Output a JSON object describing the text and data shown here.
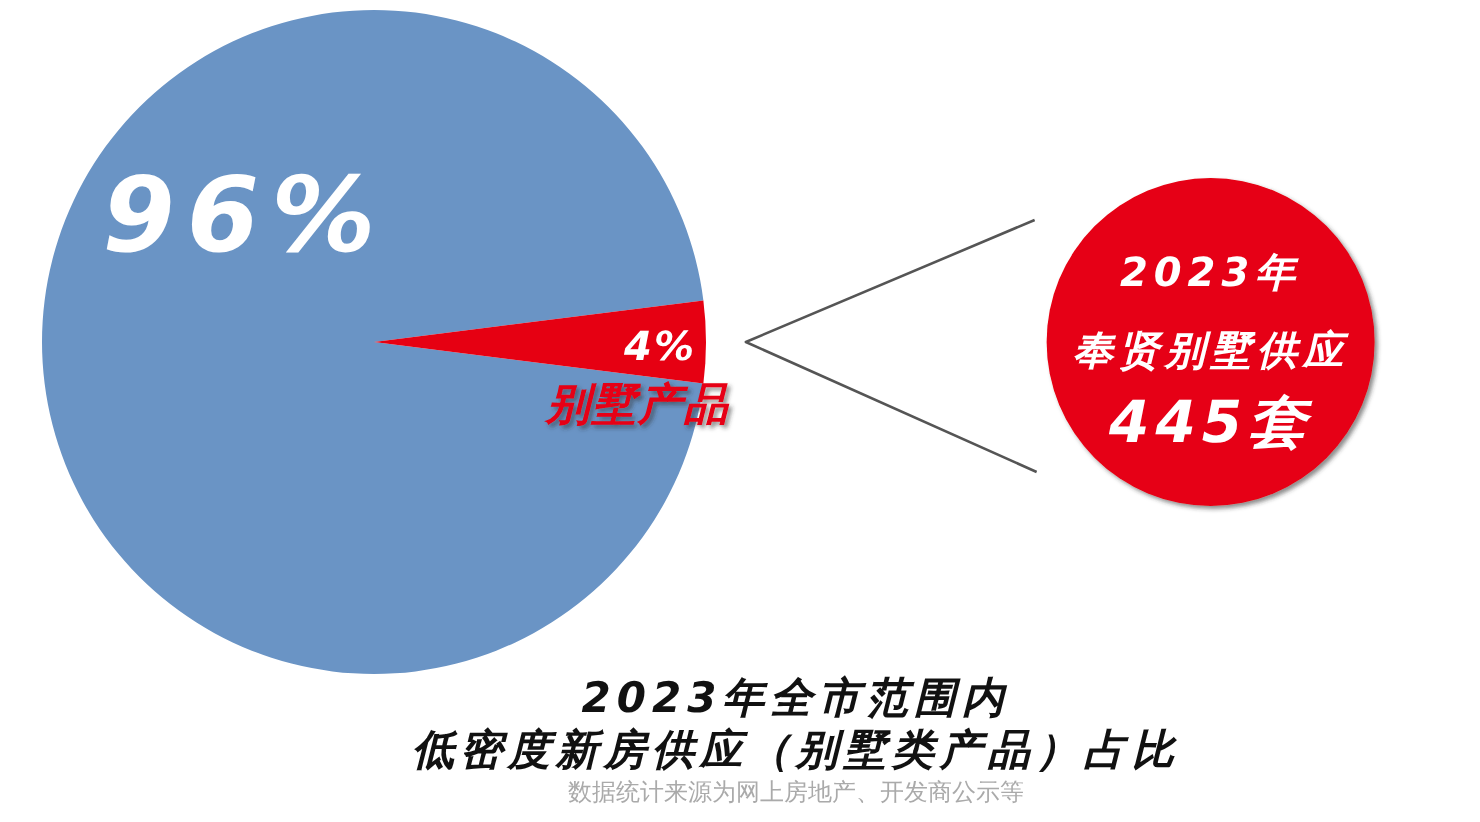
{
  "chart_data": {
    "type": "pie",
    "title": "2023年全市范围内",
    "subtitle": "低密度新房供应（别墅类产品）占比",
    "categories": [
      null,
      "别墅产品"
    ],
    "values": [
      96,
      4
    ],
    "colors": [
      "#6a94c5",
      "#e60012"
    ],
    "value_labels": [
      "96%",
      "4%"
    ],
    "annotations": [
      {
        "text": "2023年",
        "x": "别墅产品"
      },
      {
        "text": "奉贤别墅供应",
        "x": "别墅产品"
      },
      {
        "text": "445套",
        "x": "别墅产品"
      },
      "数据统计来源为网上房地产、开发商公示等"
    ]
  }
}
